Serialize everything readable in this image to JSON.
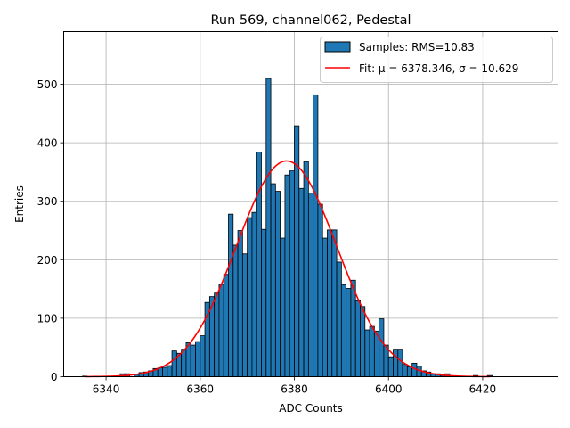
{
  "chart_data": {
    "type": "bar",
    "title": "Run 569, channel062, Pedestal",
    "xlabel": "ADC Counts",
    "ylabel": "Entries",
    "xlim": [
      6331,
      6436
    ],
    "ylim": [
      0,
      590
    ],
    "xticks": [
      6340,
      6360,
      6380,
      6400,
      6420
    ],
    "yticks": [
      0,
      100,
      200,
      300,
      400,
      500
    ],
    "grid": true,
    "legend_position": "top-right",
    "colors": {
      "bars": "#1f77b4",
      "bar_edge": "#000000",
      "fit": "#ff0000",
      "grid": "#b0b0b0"
    },
    "series": [
      {
        "name": "Samples: RMS=10.83",
        "type": "histogram",
        "bin_width": 1,
        "bins": [
          [
            6335.5,
            1
          ],
          [
            6343.5,
            5
          ],
          [
            6344.5,
            5
          ],
          [
            6346.5,
            4
          ],
          [
            6347.5,
            7
          ],
          [
            6348.5,
            8
          ],
          [
            6349.5,
            10
          ],
          [
            6350.5,
            14
          ],
          [
            6351.5,
            15
          ],
          [
            6352.5,
            16
          ],
          [
            6353.5,
            19
          ],
          [
            6354.5,
            44
          ],
          [
            6355.5,
            40
          ],
          [
            6356.5,
            47
          ],
          [
            6357.5,
            58
          ],
          [
            6358.5,
            54
          ],
          [
            6359.5,
            60
          ],
          [
            6360.5,
            70
          ],
          [
            6361.5,
            127
          ],
          [
            6362.5,
            137
          ],
          [
            6363.5,
            143
          ],
          [
            6364.5,
            158
          ],
          [
            6365.5,
            175
          ],
          [
            6366.5,
            278
          ],
          [
            6367.5,
            225
          ],
          [
            6368.5,
            250
          ],
          [
            6369.5,
            210
          ],
          [
            6370.5,
            272
          ],
          [
            6371.5,
            281
          ],
          [
            6372.5,
            384
          ],
          [
            6373.5,
            252
          ],
          [
            6374.5,
            510
          ],
          [
            6375.5,
            330
          ],
          [
            6376.5,
            317
          ],
          [
            6377.5,
            237
          ],
          [
            6378.5,
            345
          ],
          [
            6379.5,
            352
          ],
          [
            6380.5,
            429
          ],
          [
            6381.5,
            322
          ],
          [
            6382.5,
            368
          ],
          [
            6383.5,
            314
          ],
          [
            6384.5,
            482
          ],
          [
            6385.5,
            295
          ],
          [
            6386.5,
            237
          ],
          [
            6387.5,
            251
          ],
          [
            6388.5,
            251
          ],
          [
            6389.5,
            196
          ],
          [
            6390.5,
            157
          ],
          [
            6391.5,
            151
          ],
          [
            6392.5,
            165
          ],
          [
            6393.5,
            130
          ],
          [
            6394.5,
            120
          ],
          [
            6395.5,
            80
          ],
          [
            6396.5,
            86
          ],
          [
            6397.5,
            78
          ],
          [
            6398.5,
            99
          ],
          [
            6399.5,
            54
          ],
          [
            6400.5,
            34
          ],
          [
            6401.5,
            47
          ],
          [
            6402.5,
            47
          ],
          [
            6403.5,
            21
          ],
          [
            6404.5,
            17
          ],
          [
            6405.5,
            23
          ],
          [
            6406.5,
            18
          ],
          [
            6407.5,
            10
          ],
          [
            6408.5,
            8
          ],
          [
            6409.5,
            5
          ],
          [
            6410.5,
            5
          ],
          [
            6411.5,
            2
          ],
          [
            6412.5,
            5
          ],
          [
            6418.5,
            2
          ],
          [
            6421.5,
            2
          ]
        ]
      },
      {
        "name": "Fit: μ = 6378.346, σ = 10.629",
        "type": "gaussian",
        "mu": 6378.346,
        "sigma": 10.629,
        "amplitude": 369,
        "x_range": [
          6335.5,
          6421.5
        ]
      }
    ]
  }
}
